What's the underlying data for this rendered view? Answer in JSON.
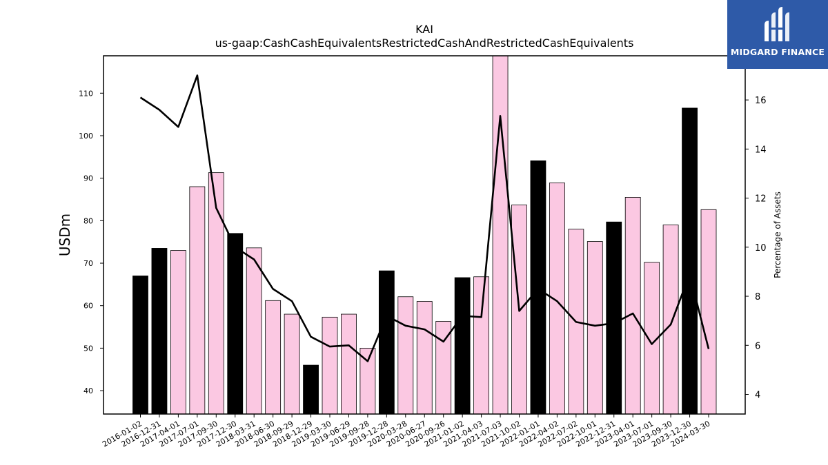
{
  "chart_data": {
    "type": "bar",
    "title": "KAI",
    "subtitle": "us-gaap:CashCashEquivalentsRestrictedCashAndRestrictedCashEquivalents",
    "ylabel": "USDm",
    "y2label": "Percentage of Assets",
    "ylim": [
      34.5,
      118.8
    ],
    "y2lim": [
      3.2,
      17.8
    ],
    "yticks": [
      40,
      50,
      60,
      70,
      80,
      90,
      100,
      110
    ],
    "y2ticks": [
      4,
      6,
      8,
      10,
      12,
      14,
      16
    ],
    "categories": [
      "2016-01-02",
      "2016-12-31",
      "2017-04-01",
      "2017-07-01",
      "2017-09-30",
      "2017-12-30",
      "2018-03-31",
      "2018-06-30",
      "2018-09-29",
      "2018-12-29",
      "2019-03-30",
      "2019-06-29",
      "2019-09-28",
      "2019-12-28",
      "2020-03-28",
      "2020-06-27",
      "2020-09-26",
      "2021-01-02",
      "2021-04-03",
      "2021-07-03",
      "2021-10-02",
      "2022-01-01",
      "2022-04-02",
      "2022-07-02",
      "2022-10-01",
      "2022-12-31",
      "2023-04-01",
      "2023-07-01",
      "2023-09-30",
      "2023-12-30",
      "2024-03-30"
    ],
    "series": [
      {
        "type": "bar",
        "values": [
          67.0,
          73.5,
          73.0,
          88.0,
          91.3,
          77.0,
          73.6,
          61.2,
          58.0,
          46.0,
          57.3,
          58.0,
          50.0,
          68.2,
          62.1,
          61.0,
          56.3,
          66.6,
          66.8,
          119.0,
          83.7,
          94.1,
          88.9,
          78.0,
          75.1,
          79.7,
          85.5,
          70.2,
          79.0,
          106.5,
          82.6
        ],
        "highlight": [
          true,
          true,
          false,
          false,
          false,
          true,
          false,
          false,
          false,
          true,
          false,
          false,
          false,
          true,
          false,
          false,
          false,
          true,
          false,
          false,
          false,
          true,
          false,
          false,
          false,
          true,
          false,
          false,
          false,
          true,
          false
        ]
      },
      {
        "type": "line",
        "axis": "right",
        "values": [
          16.1,
          15.6,
          14.9,
          17.0,
          11.6,
          10.0,
          9.5,
          8.3,
          7.8,
          6.35,
          5.95,
          6.0,
          5.35,
          7.2,
          6.8,
          6.65,
          6.15,
          7.2,
          7.15,
          15.35,
          7.4,
          8.3,
          7.8,
          6.95,
          6.8,
          6.9,
          7.3,
          6.05,
          6.85,
          8.9,
          5.85
        ]
      }
    ],
    "colors": {
      "highlight_bar": "#000000",
      "bar": "#fbc8e2",
      "bar_edge": "#000000",
      "line": "#000000"
    },
    "grid": false
  },
  "logo": {
    "text": "MIDGARD FINANCE",
    "background": "#2e5aa8"
  }
}
